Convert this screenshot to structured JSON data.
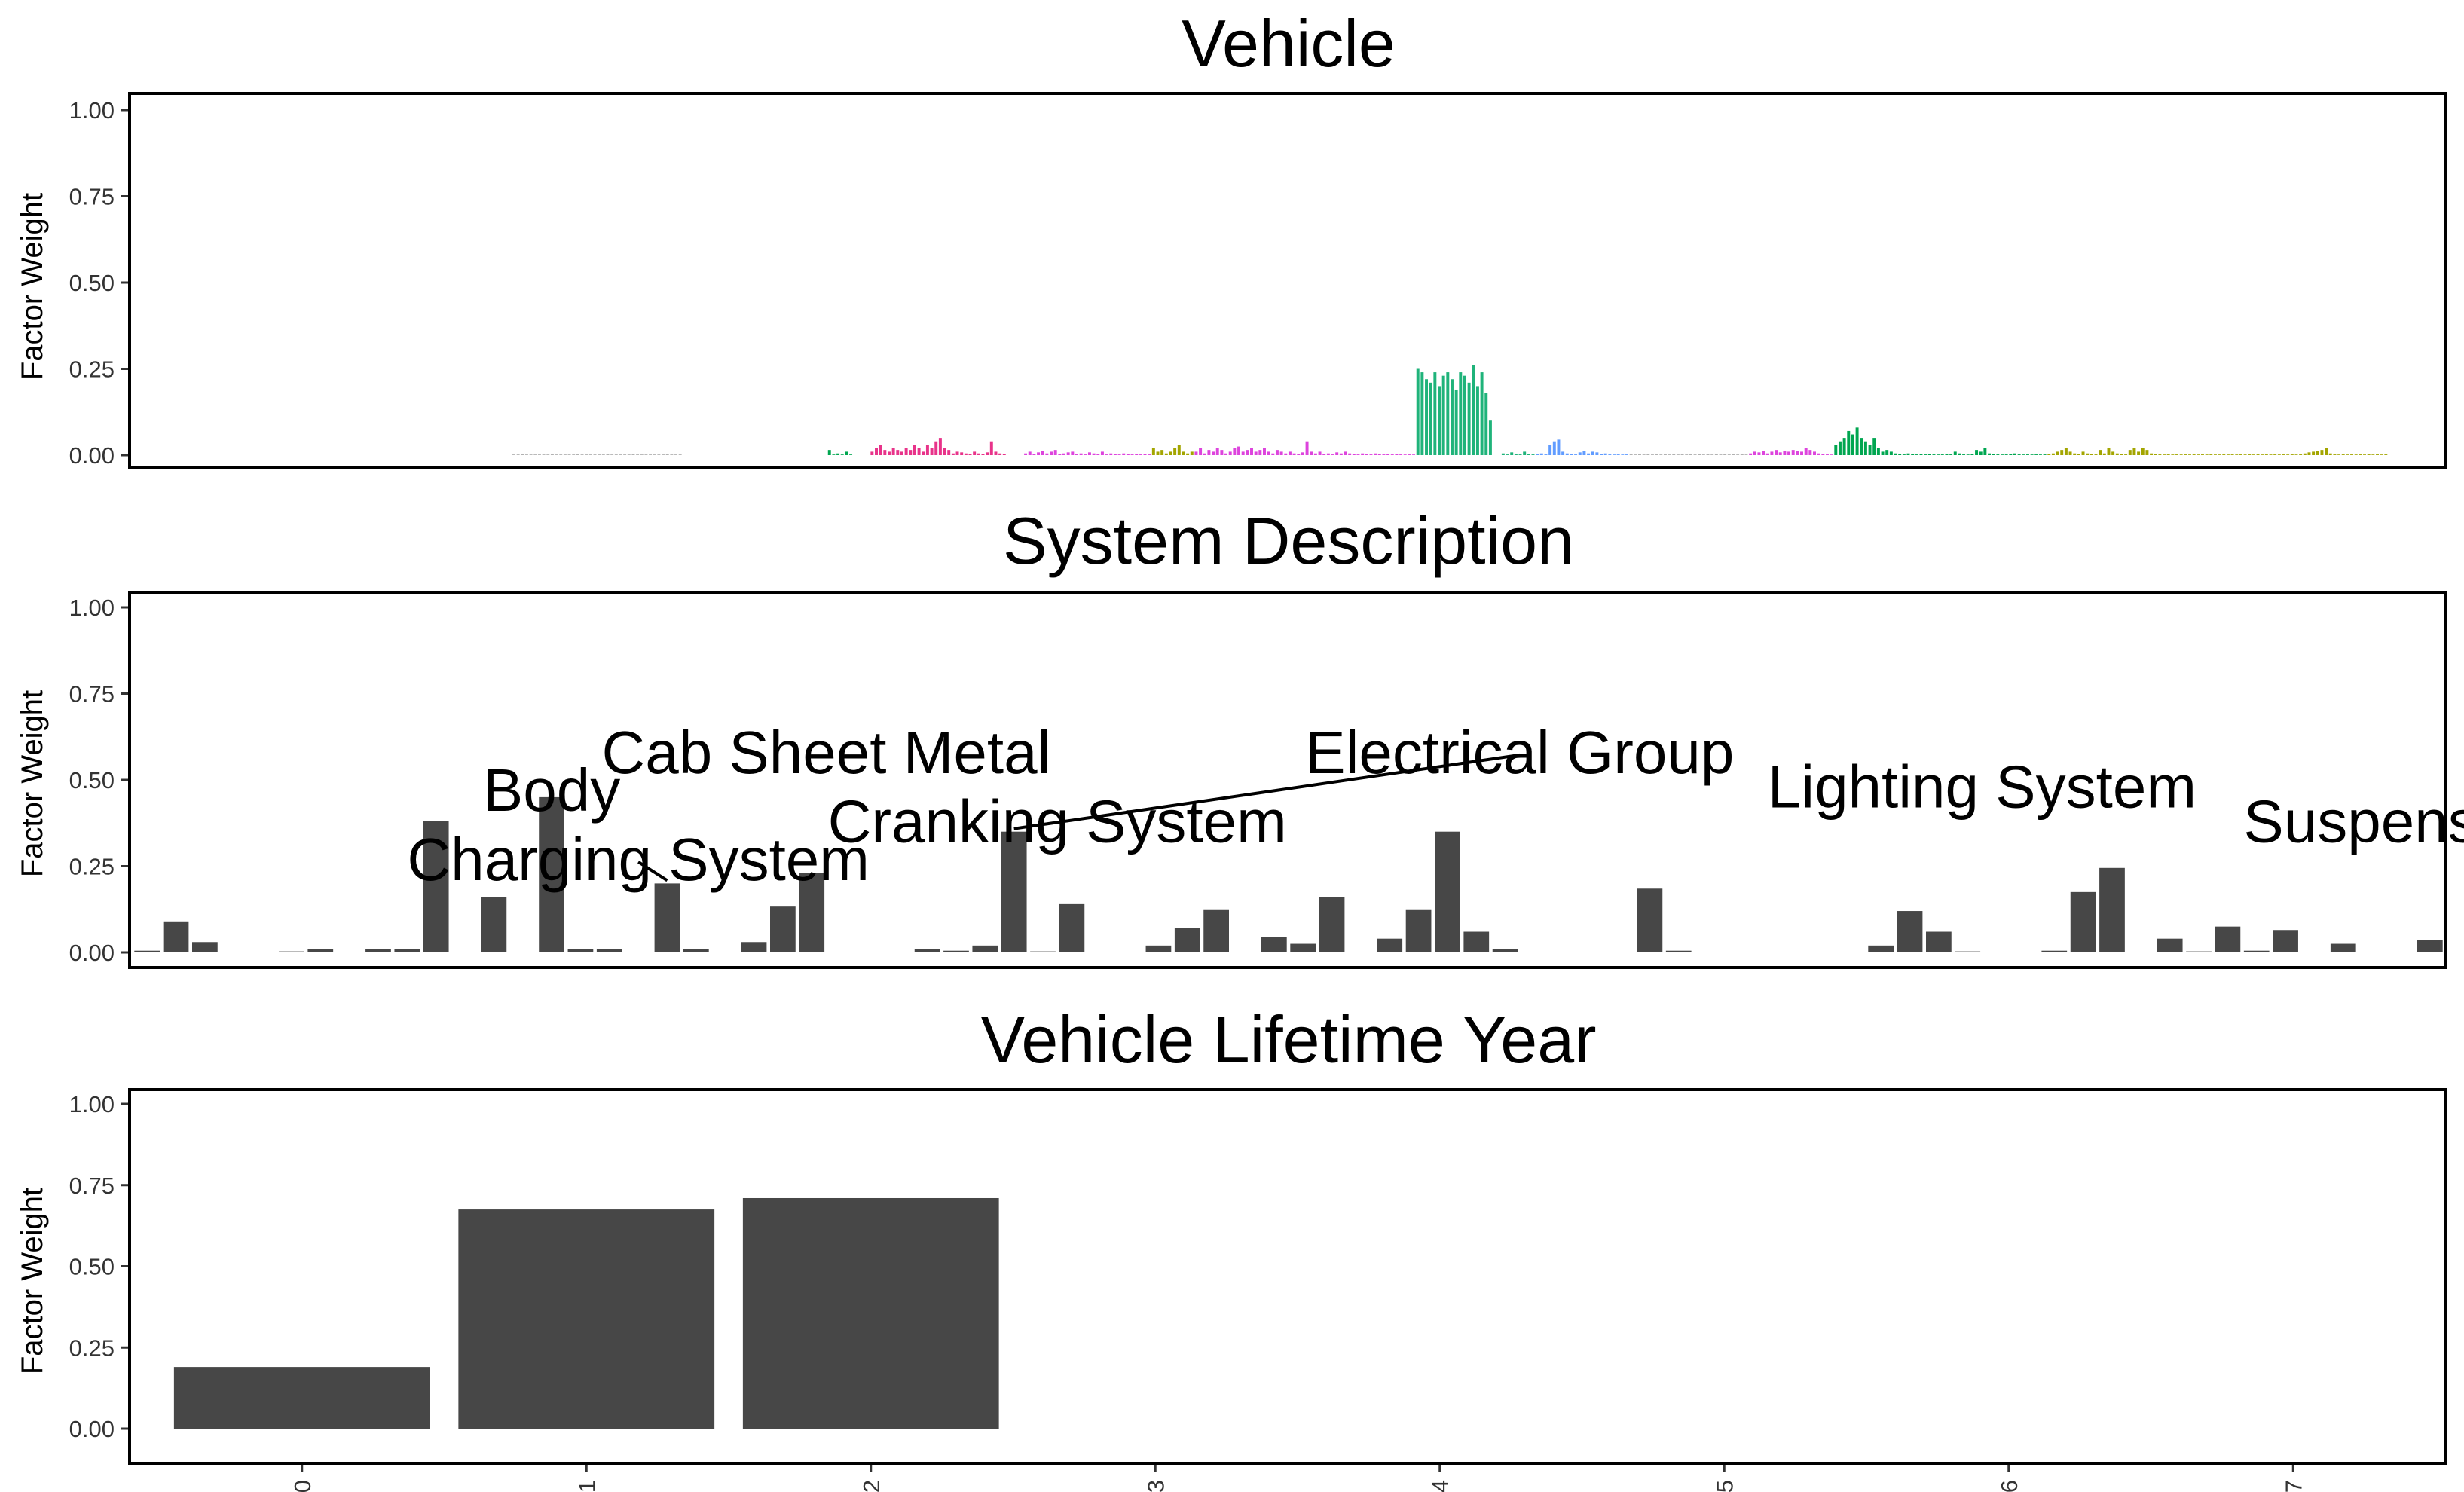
{
  "chart_data": [
    {
      "type": "bar",
      "title": "Vehicle",
      "xlabel": "",
      "ylabel": "Factor Weight",
      "ylim": [
        0,
        1
      ],
      "yticks": [
        "0.00",
        "0.25",
        "0.50",
        "0.75",
        "1.00"
      ],
      "grid": false,
      "note": "many vehicle ids on x axis, no tick labels shown",
      "n_bars": 440,
      "groups": [
        {
          "start": 0,
          "end": 40,
          "color": "#aaaaaa",
          "values": [
            0.001,
            0,
            0.002,
            0,
            0.001,
            0,
            0,
            0.001,
            0,
            0.002,
            0,
            0,
            0.001,
            0,
            0,
            0.002,
            0,
            0.001,
            0,
            0,
            0.001,
            0,
            0.002,
            0,
            0,
            0.001,
            0,
            0,
            0.002,
            0,
            0.001,
            0,
            0,
            0.001,
            0,
            0,
            0.002,
            0,
            0.001,
            0
          ]
        },
        {
          "start": 74,
          "end": 80,
          "color": "#00a650",
          "values": [
            0.015,
            0,
            0.005,
            0,
            0.01,
            0
          ]
        },
        {
          "start": 84,
          "end": 116,
          "color": "#e8338a",
          "values": [
            0.01,
            0.02,
            0.03,
            0.015,
            0.01,
            0.02,
            0.015,
            0.01,
            0.02,
            0.015,
            0.03,
            0.02,
            0.01,
            0.03,
            0.02,
            0.04,
            0.05,
            0.02,
            0.015,
            0.005,
            0.01,
            0.008,
            0.005,
            0.003,
            0.01,
            0.005,
            0.003,
            0.008,
            0.04,
            0.01,
            0.005,
            0.003
          ]
        },
        {
          "start": 120,
          "end": 150,
          "color": "#dd44dd",
          "values": [
            0.005,
            0.01,
            0.003,
            0.008,
            0.012,
            0.005,
            0.01,
            0.015,
            0.003,
            0.005,
            0.008,
            0.01,
            0.003,
            0.005,
            0.002,
            0.008,
            0.005,
            0.003,
            0.01,
            0.002,
            0.005,
            0.003,
            0.002,
            0.005,
            0.003,
            0.002,
            0.004,
            0.002,
            0.003,
            0.002
          ]
        },
        {
          "start": 150,
          "end": 160,
          "color": "#a3a500",
          "values": [
            0.02,
            0.01,
            0.015,
            0.005,
            0.01,
            0.02,
            0.03,
            0.01,
            0.005,
            0.01
          ]
        },
        {
          "start": 160,
          "end": 212,
          "color": "#dd44dd",
          "values": [
            0.01,
            0.02,
            0.005,
            0.015,
            0.01,
            0.02,
            0.015,
            0.005,
            0.01,
            0.02,
            0.025,
            0.01,
            0.015,
            0.02,
            0.01,
            0.015,
            0.02,
            0.01,
            0.005,
            0.015,
            0.01,
            0.005,
            0.01,
            0.005,
            0.003,
            0.008,
            0.04,
            0.01,
            0.005,
            0.01,
            0.003,
            0.005,
            0.002,
            0.008,
            0.005,
            0.01,
            0.005,
            0.003,
            0.002,
            0.005,
            0.003,
            0.002,
            0.005,
            0.003,
            0.002,
            0.004,
            0.002,
            0.003,
            0.002,
            0.001,
            0.002,
            0.001
          ]
        },
        {
          "start": 212,
          "end": 230,
          "color": "#1fb37a",
          "values": [
            0.25,
            0.24,
            0.22,
            0.21,
            0.24,
            0.2,
            0.23,
            0.24,
            0.22,
            0.19,
            0.24,
            0.23,
            0.21,
            0.26,
            0.2,
            0.24,
            0.18,
            0.1
          ]
        },
        {
          "start": 232,
          "end": 240,
          "color": "#1fb37a",
          "values": [
            0.005,
            0.002,
            0.008,
            0.003,
            0.002,
            0.01,
            0.003,
            0.002
          ]
        },
        {
          "start": 240,
          "end": 262,
          "color": "#619cff",
          "values": [
            0.003,
            0.005,
            0.002,
            0.03,
            0.04,
            0.045,
            0.01,
            0.005,
            0.003,
            0.002,
            0.008,
            0.012,
            0.005,
            0.01,
            0.008,
            0.003,
            0.005,
            0.002,
            0.001,
            0.002,
            0.001,
            0.002
          ]
        },
        {
          "start": 262,
          "end": 290,
          "color": "#aaaaaa",
          "values": [
            0.002,
            0.001,
            0.002,
            0.001,
            0.002,
            0.001,
            0.002,
            0.001,
            0.002,
            0.001,
            0.002,
            0.001,
            0.002,
            0.001,
            0.002,
            0.001,
            0.002,
            0.001,
            0.002,
            0.001,
            0.002,
            0.001,
            0.002,
            0.001,
            0.002,
            0.001,
            0.002,
            0.001
          ]
        },
        {
          "start": 290,
          "end": 310,
          "color": "#dd44dd",
          "values": [
            0.005,
            0.01,
            0.008,
            0.012,
            0.005,
            0.01,
            0.015,
            0.008,
            0.012,
            0.01,
            0.015,
            0.012,
            0.01,
            0.02,
            0.015,
            0.01,
            0.005,
            0.003,
            0.002,
            0.001
          ]
        },
        {
          "start": 310,
          "end": 325,
          "color": "#00a650",
          "values": [
            0.03,
            0.04,
            0.05,
            0.07,
            0.06,
            0.08,
            0.05,
            0.04,
            0.03,
            0.05,
            0.02,
            0.01,
            0.015,
            0.01,
            0.005
          ]
        },
        {
          "start": 325,
          "end": 360,
          "color": "#00a650",
          "values": [
            0.003,
            0.002,
            0.005,
            0.003,
            0.002,
            0.004,
            0.002,
            0.003,
            0.002,
            0.001,
            0.002,
            0.003,
            0.002,
            0.01,
            0.005,
            0.002,
            0.001,
            0.003,
            0.015,
            0.01,
            0.02,
            0.005,
            0.003,
            0.002,
            0.001,
            0.002,
            0.003,
            0.005,
            0.002,
            0.001,
            0.002,
            0.001,
            0.002,
            0.001,
            0.002
          ]
        },
        {
          "start": 360,
          "end": 400,
          "color": "#a3a500",
          "values": [
            0.003,
            0.005,
            0.01,
            0.015,
            0.02,
            0.01,
            0.005,
            0.003,
            0.01,
            0.005,
            0.003,
            0.002,
            0.015,
            0.005,
            0.02,
            0.01,
            0.005,
            0.003,
            0.002,
            0.015,
            0.02,
            0.01,
            0.02,
            0.015,
            0.005,
            0.003,
            0.002,
            0.001,
            0.002,
            0.001,
            0.002,
            0.001,
            0.002,
            0.001,
            0.002,
            0.001,
            0.002,
            0.001,
            0.002,
            0.001
          ]
        },
        {
          "start": 400,
          "end": 440,
          "color": "#a3a500",
          "values": [
            0.001,
            0.002,
            0.001,
            0.002,
            0.001,
            0.002,
            0.001,
            0.002,
            0.001,
            0.002,
            0.001,
            0.002,
            0.001,
            0.002,
            0.001,
            0.002,
            0.001,
            0.002,
            0.001,
            0.002,
            0.005,
            0.008,
            0.01,
            0.012,
            0.015,
            0.02,
            0.005,
            0.002,
            0.001,
            0.002,
            0.001,
            0.002,
            0.001,
            0.002,
            0.001,
            0.002,
            0.001,
            0.002,
            0.001,
            0.002
          ]
        }
      ]
    },
    {
      "type": "bar",
      "title": "System Description",
      "xlabel": "",
      "ylabel": "Factor Weight",
      "ylim": [
        0,
        1
      ],
      "yticks": [
        "0.00",
        "0.25",
        "0.50",
        "0.75",
        "1.00"
      ],
      "grid": false,
      "color": "#474747",
      "values": [
        0.005,
        0.09,
        0.03,
        0,
        0,
        0.003,
        0.01,
        0,
        0.01,
        0.01,
        0.38,
        0,
        0.16,
        0,
        0.45,
        0.01,
        0.01,
        0,
        0.2,
        0.01,
        0,
        0.03,
        0.135,
        0.23,
        0,
        0,
        0,
        0.01,
        0.005,
        0.02,
        0.35,
        0.003,
        0.14,
        0,
        0,
        0.02,
        0.07,
        0.125,
        0,
        0.045,
        0.025,
        0.16,
        0,
        0.04,
        0.125,
        0.35,
        0.06,
        0.01,
        0,
        0,
        0,
        0,
        0.185,
        0.005,
        0,
        0,
        0,
        0,
        0,
        0,
        0.02,
        0.12,
        0.06,
        0.003,
        0,
        0,
        0.005,
        0.175,
        0.245,
        0,
        0.04,
        0.003,
        0.075,
        0.005,
        0.065,
        0,
        0.025,
        0,
        0,
        0.035
      ],
      "annotations": [
        {
          "label": "Charging System",
          "index": 18,
          "text_x": 17.5,
          "text_y": 0.21,
          "leader": true
        },
        {
          "label": "Body",
          "index": 10,
          "text_x": 14.5,
          "text_y": 0.41,
          "leader": false
        },
        {
          "label": "Cab Sheet Metal",
          "index": 14,
          "text_x": 24,
          "text_y": 0.52,
          "leader": false
        },
        {
          "label": "Cranking System",
          "index": 30,
          "text_x": 32,
          "text_y": 0.32,
          "leader": false
        },
        {
          "label": "Electrical Group",
          "index": 30,
          "text_x": 48,
          "text_y": 0.52,
          "leader": true
        },
        {
          "label": "Lighting System",
          "index": 45,
          "text_x": 64,
          "text_y": 0.42,
          "leader": false
        },
        {
          "label": "Suspension",
          "index": 68,
          "text_x": 78.5,
          "text_y": 0.32,
          "leader": false
        }
      ]
    },
    {
      "type": "bar",
      "title": "Vehicle Lifetime Year",
      "xlabel": "",
      "ylabel": "Factor Weight",
      "ylim": [
        0,
        1
      ],
      "yticks": [
        "0.00",
        "0.25",
        "0.50",
        "0.75",
        "1.00"
      ],
      "grid": false,
      "color": "#474747",
      "categories": [
        "0",
        "1",
        "2",
        "3",
        "4",
        "5",
        "6",
        "7"
      ],
      "values": [
        0.19,
        0.675,
        0.71,
        0,
        0,
        0,
        0,
        0
      ]
    }
  ]
}
